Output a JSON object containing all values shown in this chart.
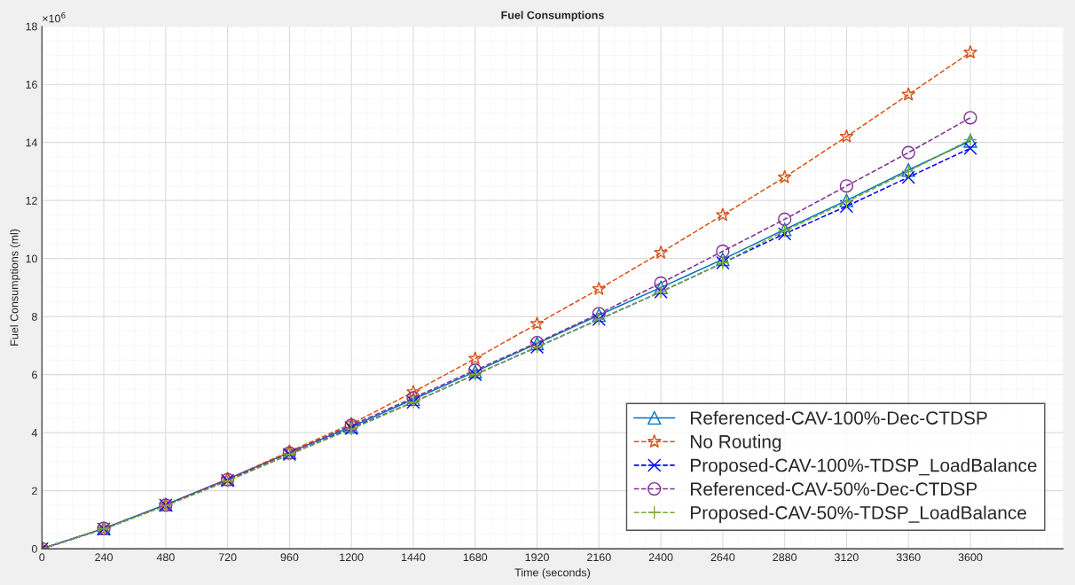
{
  "chart_data": {
    "type": "line",
    "title": "Fuel Consumptions",
    "xlabel": "Time (seconds)",
    "ylabel": "Fuel Consumptions (ml)",
    "annotations": [
      "×10$^{6}$"
    ],
    "x": [
      0,
      240,
      480,
      720,
      960,
      1200,
      1440,
      1680,
      1920,
      2160,
      2400,
      2640,
      2880,
      3120,
      3360,
      3600
    ],
    "series": [
      {
        "name": "Referenced-CAV-100%-Dec-CTDSP",
        "color": "#0072bd",
        "marker": "triangle",
        "line_style": "solid",
        "values": [
          0,
          0.7,
          1.52,
          2.4,
          3.32,
          4.2,
          5.15,
          6.1,
          7.07,
          8.05,
          9.0,
          9.97,
          11.0,
          12.0,
          13.05,
          14.05
        ]
      },
      {
        "name": "No Routing",
        "color": "#d95319",
        "marker": "star",
        "line_style": "dashed",
        "values": [
          0,
          0.68,
          1.5,
          2.4,
          3.35,
          4.3,
          5.4,
          6.55,
          7.75,
          8.95,
          10.2,
          11.5,
          12.8,
          14.2,
          15.65,
          17.1
        ]
      },
      {
        "name": "Proposed-CAV-100%-TDSP_LoadBalance",
        "color": "#0000ff",
        "marker": "cross",
        "line_style": "dashed",
        "values": [
          0,
          0.68,
          1.5,
          2.35,
          3.25,
          4.15,
          5.05,
          6.0,
          6.95,
          7.9,
          8.85,
          9.85,
          10.85,
          11.8,
          12.8,
          13.8
        ]
      },
      {
        "name": "Referenced-CAV-50%-Dec-CTDSP",
        "color": "#7e2f8e",
        "marker": "circle",
        "line_style": "dashed",
        "values": [
          0,
          0.7,
          1.5,
          2.38,
          3.3,
          4.25,
          5.2,
          6.15,
          7.1,
          8.1,
          9.15,
          10.25,
          11.35,
          12.5,
          13.65,
          14.85
        ]
      },
      {
        "name": "Proposed-CAV-50%-TDSP_LoadBalance",
        "color": "#77ac30",
        "marker": "plus",
        "line_style": "dashed",
        "values": [
          0,
          0.68,
          1.48,
          2.33,
          3.25,
          4.12,
          5.05,
          6.0,
          6.95,
          7.9,
          8.85,
          9.85,
          10.95,
          11.95,
          13.0,
          14.1
        ]
      }
    ],
    "xlim": [
      0,
      3960
    ],
    "xticks": [
      0,
      240,
      480,
      720,
      960,
      1200,
      1440,
      1680,
      1920,
      2160,
      2400,
      2640,
      2880,
      3120,
      3360,
      3600
    ],
    "ylim": [
      0,
      18
    ],
    "yticks": [
      0,
      2,
      4,
      6,
      8,
      10,
      12,
      14,
      16,
      18
    ],
    "grid": true,
    "legend": "bottom right"
  }
}
